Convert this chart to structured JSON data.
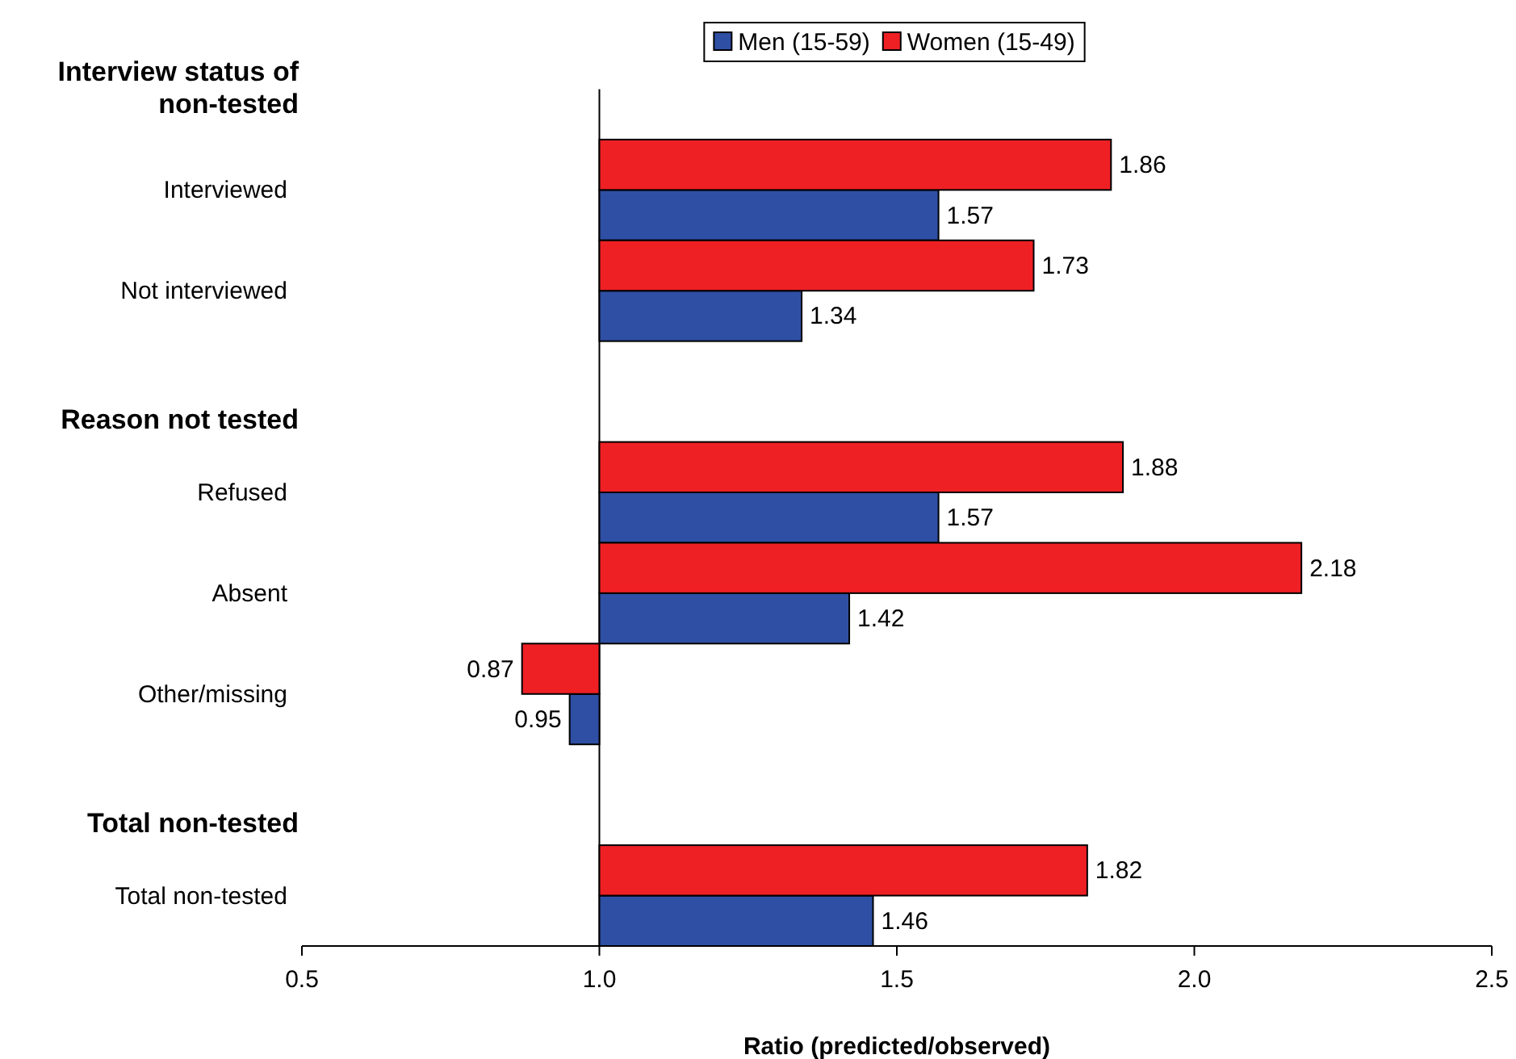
{
  "chart_data": {
    "type": "bar",
    "orientation": "horizontal",
    "xlabel": "Ratio (predicted/observed)",
    "categories": [
      null,
      "Interviewed",
      "Not interviewed",
      null,
      "Refused",
      "Absent",
      "Other/missing",
      null,
      "Total non-tested"
    ],
    "series": [
      {
        "name": "Men (15-59)",
        "color": "#2e4fa3",
        "base": [
          null,
          1,
          1,
          null,
          1,
          1,
          1,
          null,
          1
        ],
        "values": [
          null,
          0.57,
          0.34,
          null,
          0.57,
          0.42,
          -0.05,
          null,
          0.46
        ],
        "value_labels": [
          null,
          "1.57",
          "1.34",
          null,
          "1.57",
          "1.42",
          "0.95",
          null,
          "1.46"
        ]
      },
      {
        "name": "Women (15-49)",
        "color": "#ee2024",
        "base": [
          null,
          1,
          1,
          null,
          1,
          1,
          1,
          null,
          1
        ],
        "values": [
          null,
          0.86,
          0.73,
          null,
          0.88,
          1.18,
          -0.13,
          null,
          0.82
        ],
        "value_labels": [
          null,
          "1.86",
          "1.73",
          null,
          "1.88",
          "2.18",
          "0.87",
          null,
          "1.82"
        ]
      }
    ],
    "annotations": [
      "Interview status of non-tested",
      "Reason not tested",
      "Total non-tested"
    ],
    "xlim": [
      0.5,
      2.5
    ],
    "xticks": [
      {
        "value": 0.5,
        "label": "0.5"
      },
      {
        "value": 1,
        "label": "1.0"
      },
      {
        "value": 1.5,
        "label": "1.5"
      },
      {
        "value": 2,
        "label": "2.0"
      },
      {
        "value": 2.5,
        "label": "2.5"
      }
    ],
    "legend": "top"
  }
}
